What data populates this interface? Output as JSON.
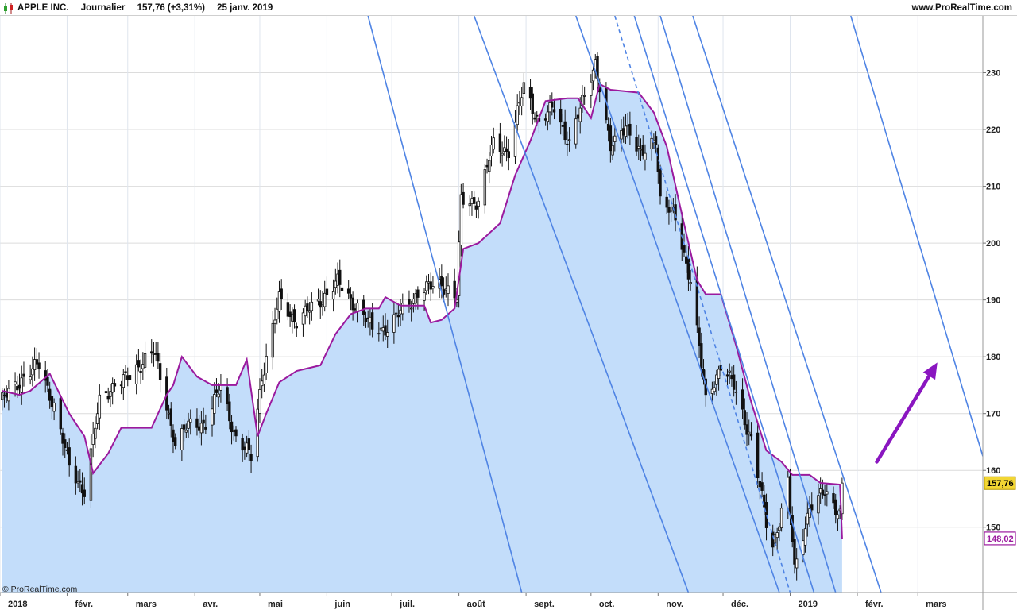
{
  "header": {
    "instrument": "APPLE INC.",
    "period": "Journalier",
    "quote": "157,76 (+3,31%)",
    "date": "25 janv. 2019",
    "site": "www.ProRealTime.com"
  },
  "watermark": "© ProRealTime.com",
  "colors": {
    "area_fill": "#c3ddfa",
    "stop_line": "#9b1a9e",
    "trend_line": "#4f84e4",
    "arrow": "#8a16c0",
    "last_price_tag": "#f2d633",
    "stop_tag_border": "#9b1a9e"
  },
  "chart_data": {
    "type": "candlestick",
    "y_axis": {
      "min": 138.5,
      "max": 240,
      "ticks": [
        150,
        160,
        170,
        180,
        190,
        200,
        210,
        220,
        230
      ]
    },
    "x_axis": {
      "range": [
        "2018-01-01",
        "2019-03-31"
      ],
      "ticks": [
        {
          "date": "2018-01-01",
          "label": "2018"
        },
        {
          "date": "2018-02-01",
          "label": "févr."
        },
        {
          "date": "2018-03-01",
          "label": "mars"
        },
        {
          "date": "2018-04-01",
          "label": "avr."
        },
        {
          "date": "2018-05-01",
          "label": "mai"
        },
        {
          "date": "2018-06-01",
          "label": "juin"
        },
        {
          "date": "2018-07-01",
          "label": "juil."
        },
        {
          "date": "2018-08-01",
          "label": "août"
        },
        {
          "date": "2018-09-01",
          "label": "sept."
        },
        {
          "date": "2018-10-01",
          "label": "oct."
        },
        {
          "date": "2018-11-01",
          "label": "nov."
        },
        {
          "date": "2018-12-01",
          "label": "déc."
        },
        {
          "date": "2019-01-01",
          "label": "2019"
        },
        {
          "date": "2019-02-01",
          "label": "févr."
        },
        {
          "date": "2019-03-01",
          "label": "mars"
        }
      ]
    },
    "price_close_path": [
      [
        "2018-01-02",
        172.3
      ],
      [
        "2018-01-12",
        176.5
      ],
      [
        "2018-01-19",
        178.5
      ],
      [
        "2018-01-26",
        171.5
      ],
      [
        "2018-02-02",
        160.5
      ],
      [
        "2018-02-09",
        156.5
      ],
      [
        "2018-02-16",
        172.0
      ],
      [
        "2018-02-23",
        175.5
      ],
      [
        "2018-03-02",
        176.2
      ],
      [
        "2018-03-09",
        179.9
      ],
      [
        "2018-03-13",
        181.0
      ],
      [
        "2018-03-23",
        164.9
      ],
      [
        "2018-03-29",
        167.8
      ],
      [
        "2018-04-06",
        168.4
      ],
      [
        "2018-04-13",
        174.7
      ],
      [
        "2018-04-20",
        165.7
      ],
      [
        "2018-04-27",
        162.3
      ],
      [
        "2018-05-02",
        176.6
      ],
      [
        "2018-05-10",
        190.0
      ],
      [
        "2018-05-18",
        186.3
      ],
      [
        "2018-05-25",
        188.6
      ],
      [
        "2018-06-06",
        193.0
      ],
      [
        "2018-06-15",
        188.8
      ],
      [
        "2018-06-22",
        184.9
      ],
      [
        "2018-06-29",
        185.1
      ],
      [
        "2018-07-13",
        191.3
      ],
      [
        "2018-07-24",
        193.0
      ],
      [
        "2018-07-31",
        190.3
      ],
      [
        "2018-08-02",
        207.4
      ],
      [
        "2018-08-10",
        207.5
      ],
      [
        "2018-08-17",
        217.6
      ],
      [
        "2018-08-24",
        216.2
      ],
      [
        "2018-08-31",
        227.6
      ],
      [
        "2018-09-07",
        221.3
      ],
      [
        "2018-09-14",
        223.8
      ],
      [
        "2018-09-21",
        217.7
      ],
      [
        "2018-09-28",
        225.7
      ],
      [
        "2018-10-03",
        232.1
      ],
      [
        "2018-10-10",
        216.4
      ],
      [
        "2018-10-17",
        221.2
      ],
      [
        "2018-10-24",
        215.1
      ],
      [
        "2018-10-31",
        218.9
      ],
      [
        "2018-11-02",
        207.5
      ],
      [
        "2018-11-09",
        204.5
      ],
      [
        "2018-11-16",
        193.5
      ],
      [
        "2018-11-23",
        172.3
      ],
      [
        "2018-11-30",
        178.6
      ],
      [
        "2018-12-06",
        174.7
      ],
      [
        "2018-12-14",
        165.5
      ],
      [
        "2018-12-21",
        150.7
      ],
      [
        "2018-12-24",
        146.8
      ],
      [
        "2018-12-31",
        157.7
      ],
      [
        "2019-01-03",
        142.2
      ],
      [
        "2019-01-10",
        153.8
      ],
      [
        "2019-01-17",
        155.9
      ],
      [
        "2019-01-24",
        152.7
      ],
      [
        "2019-01-25",
        157.8
      ]
    ],
    "stop_line": [
      [
        "2018-01-02",
        174.0
      ],
      [
        "2018-01-10",
        173.3
      ],
      [
        "2018-01-15",
        174.0
      ],
      [
        "2018-01-24",
        177.0
      ],
      [
        "2018-02-02",
        170.0
      ],
      [
        "2018-02-09",
        166.0
      ],
      [
        "2018-02-13",
        159.5
      ],
      [
        "2018-02-20",
        163.0
      ],
      [
        "2018-02-26",
        167.5
      ],
      [
        "2018-03-12",
        167.5
      ],
      [
        "2018-03-19",
        173.3
      ],
      [
        "2018-03-22",
        175.0
      ],
      [
        "2018-03-26",
        180.0
      ],
      [
        "2018-04-02",
        176.5
      ],
      [
        "2018-04-09",
        175.0
      ],
      [
        "2018-04-20",
        175.0
      ],
      [
        "2018-04-25",
        179.5
      ],
      [
        "2018-04-30",
        166.0
      ],
      [
        "2018-05-04",
        170.0
      ],
      [
        "2018-05-10",
        175.5
      ],
      [
        "2018-05-18",
        177.5
      ],
      [
        "2018-05-29",
        178.5
      ],
      [
        "2018-06-05",
        184.0
      ],
      [
        "2018-06-12",
        187.5
      ],
      [
        "2018-06-19",
        188.5
      ],
      [
        "2018-06-25",
        188.5
      ],
      [
        "2018-06-28",
        190.5
      ],
      [
        "2018-07-05",
        189.0
      ],
      [
        "2018-07-16",
        189.0
      ],
      [
        "2018-07-19",
        186.0
      ],
      [
        "2018-07-24",
        186.5
      ],
      [
        "2018-07-30",
        188.5
      ],
      [
        "2018-08-03",
        199.0
      ],
      [
        "2018-08-10",
        200.0
      ],
      [
        "2018-08-20",
        203.5
      ],
      [
        "2018-08-27",
        212.0
      ],
      [
        "2018-09-03",
        218.0
      ],
      [
        "2018-09-10",
        225.0
      ],
      [
        "2018-09-20",
        225.5
      ],
      [
        "2018-09-25",
        225.5
      ],
      [
        "2018-10-01",
        222.0
      ],
      [
        "2018-10-05",
        228.0
      ],
      [
        "2018-10-10",
        227.0
      ],
      [
        "2018-10-23",
        226.5
      ],
      [
        "2018-10-30",
        223.0
      ],
      [
        "2018-11-05",
        217.0
      ],
      [
        "2018-11-12",
        205.0
      ],
      [
        "2018-11-19",
        193.5
      ],
      [
        "2018-11-23",
        191.0
      ],
      [
        "2018-11-30",
        191.0
      ],
      [
        "2018-12-07",
        182.0
      ],
      [
        "2018-12-14",
        172.0
      ],
      [
        "2018-12-21",
        163.5
      ],
      [
        "2018-12-28",
        161.5
      ],
      [
        "2019-01-02",
        159.2
      ],
      [
        "2019-01-10",
        159.2
      ],
      [
        "2019-01-15",
        157.8
      ],
      [
        "2019-01-24",
        157.5
      ],
      [
        "2019-01-25",
        148.0
      ]
    ],
    "trend_lines": [
      {
        "from": [
          "2018-06-20",
          240
        ],
        "to": [
          "2018-08-30",
          138.5
        ],
        "style": "solid"
      },
      {
        "from": [
          "2018-08-08",
          240
        ],
        "to": [
          "2018-11-15",
          138.5
        ],
        "style": "solid"
      },
      {
        "from": [
          "2018-09-24",
          240
        ],
        "to": [
          "2018-12-27",
          138.5
        ],
        "style": "solid"
      },
      {
        "from": [
          "2018-10-12",
          240
        ],
        "to": [
          "2019-01-01",
          138.5
        ],
        "style": "dashed"
      },
      {
        "from": [
          "2018-10-21",
          240
        ],
        "to": [
          "2019-01-12",
          138.5
        ],
        "style": "solid"
      },
      {
        "from": [
          "2018-11-02",
          240
        ],
        "to": [
          "2019-01-22",
          138.5
        ],
        "style": "solid"
      },
      {
        "from": [
          "2018-11-17",
          240
        ],
        "to": [
          "2019-02-12",
          138.5
        ],
        "style": "solid"
      },
      {
        "from": [
          "2019-01-29",
          240
        ],
        "to": [
          "2019-03-31",
          162.5
        ],
        "style": "solid"
      }
    ],
    "arrow": {
      "from": [
        "2019-02-10",
        161.5
      ],
      "to": [
        "2019-03-10",
        179.0
      ]
    },
    "last_price": {
      "value": 157.76,
      "label": "157,76"
    },
    "last_stop": {
      "value": 148.02,
      "label": "148,02"
    }
  }
}
